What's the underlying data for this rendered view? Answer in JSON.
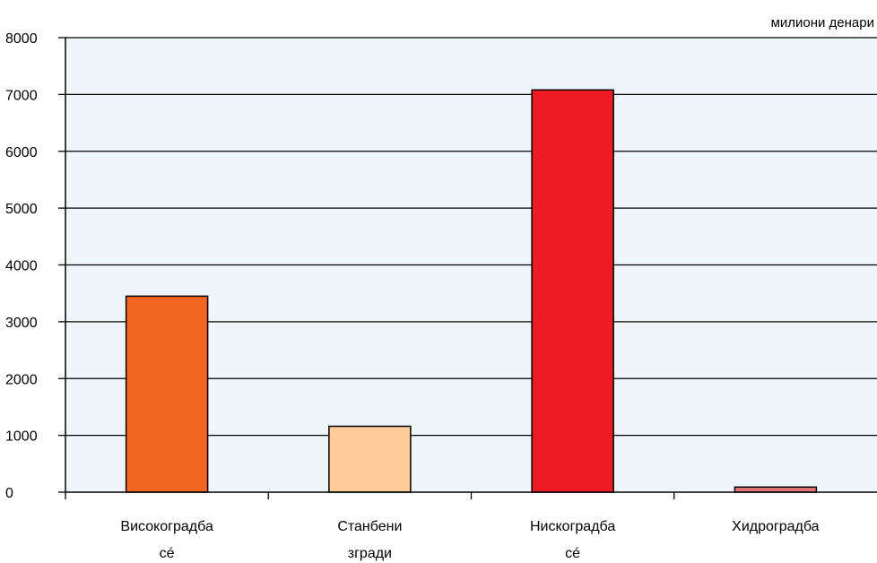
{
  "chart_data": {
    "type": "bar",
    "unit_label": "милиони денари",
    "categories": [
      [
        "Високоградба",
        "сé"
      ],
      [
        "Станбени",
        "згради"
      ],
      [
        "Нискоградба",
        "сé"
      ],
      [
        "Хидроградба"
      ]
    ],
    "values": [
      3450,
      1160,
      7080,
      90
    ],
    "colors": [
      "#f26522",
      "#fdcb98",
      "#ed1c24",
      "#e0767a"
    ],
    "ylim": [
      0,
      8000
    ],
    "yticks": [
      0,
      1000,
      2000,
      3000,
      4000,
      5000,
      6000,
      7000,
      8000
    ],
    "grid": true,
    "plot_background": "#eef6f9"
  }
}
